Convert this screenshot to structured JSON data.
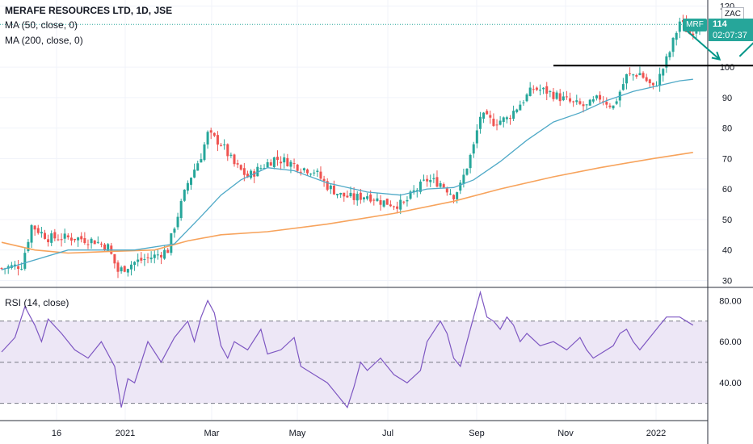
{
  "header": {
    "title": "MERAFE RESOURCES LTD, 1D, JSE",
    "ma50": "MA (50, close, 0)",
    "ma200": "MA (200, close, 0)"
  },
  "price_scale": {
    "currency": "ZAC",
    "symbol_tag": "MRF",
    "last_price": "114",
    "countdown": "02:07:37",
    "ticks": [
      "120",
      "100",
      "90",
      "80",
      "70",
      "60",
      "50",
      "40",
      "30"
    ]
  },
  "rsi_panel": {
    "label": "RSI (14, close)",
    "ticks": [
      "80.00",
      "60.00",
      "40.00"
    ]
  },
  "time_axis": {
    "labels": [
      "16",
      "2021",
      "Mar",
      "May",
      "Jul",
      "Sep",
      "Nov",
      "2022"
    ]
  },
  "colors": {
    "up": "#26a69a",
    "down": "#ef5350",
    "ma50": "#4fa9c7",
    "ma200": "#f7a35c",
    "rsi": "#7e57c2",
    "rsi_band": "#ede7f6",
    "accent": "#009688",
    "tag_bg": "#26a69a"
  },
  "chart_data": {
    "type": "candlestick",
    "price_ylim": [
      28,
      122
    ],
    "rsi_ylim": [
      22,
      86
    ],
    "rsi_band": [
      30,
      70
    ],
    "price_path": [
      [
        0,
        34
      ],
      [
        6,
        35
      ],
      [
        9,
        48
      ],
      [
        14,
        44
      ],
      [
        22,
        44
      ],
      [
        28,
        43
      ],
      [
        32,
        41
      ],
      [
        35,
        33
      ],
      [
        40,
        36
      ],
      [
        46,
        38
      ],
      [
        50,
        40
      ],
      [
        52,
        48
      ],
      [
        56,
        62
      ],
      [
        60,
        71
      ],
      [
        62,
        78
      ],
      [
        66,
        75
      ],
      [
        70,
        68
      ],
      [
        74,
        64
      ],
      [
        78,
        67
      ],
      [
        82,
        70
      ],
      [
        86,
        69
      ],
      [
        90,
        67
      ],
      [
        94,
        66
      ],
      [
        98,
        61
      ],
      [
        102,
        58
      ],
      [
        106,
        57
      ],
      [
        110,
        58
      ],
      [
        114,
        56
      ],
      [
        118,
        55
      ],
      [
        121,
        55
      ],
      [
        124,
        59
      ],
      [
        128,
        63
      ],
      [
        132,
        62
      ],
      [
        136,
        58
      ],
      [
        138,
        61
      ],
      [
        142,
        74
      ],
      [
        144,
        84
      ],
      [
        148,
        82
      ],
      [
        152,
        83
      ],
      [
        156,
        88
      ],
      [
        160,
        93
      ],
      [
        164,
        92
      ],
      [
        168,
        90
      ],
      [
        172,
        88
      ],
      [
        176,
        87
      ],
      [
        180,
        90
      ],
      [
        184,
        87
      ],
      [
        188,
        97
      ],
      [
        192,
        98
      ],
      [
        196,
        93
      ],
      [
        198,
        97
      ],
      [
        201,
        105
      ],
      [
        204,
        115
      ],
      [
        207,
        111
      ],
      [
        210,
        114
      ]
    ],
    "ma50_path": [
      [
        0,
        33.5
      ],
      [
        20,
        40
      ],
      [
        40,
        40
      ],
      [
        52,
        42
      ],
      [
        60,
        51
      ],
      [
        66,
        58
      ],
      [
        72,
        63
      ],
      [
        80,
        67
      ],
      [
        88,
        66
      ],
      [
        98,
        62
      ],
      [
        110,
        59
      ],
      [
        120,
        58
      ],
      [
        128,
        60
      ],
      [
        136,
        60.5
      ],
      [
        142,
        63
      ],
      [
        150,
        69
      ],
      [
        158,
        76
      ],
      [
        166,
        82
      ],
      [
        174,
        85
      ],
      [
        182,
        89
      ],
      [
        190,
        92
      ],
      [
        198,
        94
      ],
      [
        204,
        95.5
      ],
      [
        208,
        96
      ]
    ],
    "ma200_path": [
      [
        0,
        42.5
      ],
      [
        10,
        40
      ],
      [
        20,
        39
      ],
      [
        32,
        39.5
      ],
      [
        46,
        40
      ],
      [
        56,
        43
      ],
      [
        66,
        45
      ],
      [
        80,
        46
      ],
      [
        98,
        48.5
      ],
      [
        118,
        52
      ],
      [
        136,
        56
      ],
      [
        150,
        60
      ],
      [
        166,
        64
      ],
      [
        180,
        67
      ],
      [
        196,
        70
      ],
      [
        208,
        72
      ]
    ],
    "rsi_path": [
      [
        0,
        55
      ],
      [
        4,
        62
      ],
      [
        7,
        77
      ],
      [
        10,
        68
      ],
      [
        12,
        60
      ],
      [
        14,
        71
      ],
      [
        18,
        64
      ],
      [
        22,
        56
      ],
      [
        26,
        52
      ],
      [
        30,
        60
      ],
      [
        34,
        48
      ],
      [
        36,
        28
      ],
      [
        38,
        42
      ],
      [
        40,
        40
      ],
      [
        44,
        60
      ],
      [
        48,
        50
      ],
      [
        52,
        62
      ],
      [
        56,
        70
      ],
      [
        58,
        60
      ],
      [
        60,
        72
      ],
      [
        62,
        80
      ],
      [
        64,
        74
      ],
      [
        66,
        58
      ],
      [
        68,
        52
      ],
      [
        70,
        60
      ],
      [
        74,
        56
      ],
      [
        78,
        66
      ],
      [
        80,
        54
      ],
      [
        84,
        56
      ],
      [
        88,
        62
      ],
      [
        90,
        48
      ],
      [
        94,
        44
      ],
      [
        98,
        40
      ],
      [
        100,
        36
      ],
      [
        102,
        32
      ],
      [
        104,
        28
      ],
      [
        106,
        38
      ],
      [
        108,
        50
      ],
      [
        110,
        46
      ],
      [
        114,
        52
      ],
      [
        118,
        44
      ],
      [
        122,
        40
      ],
      [
        126,
        46
      ],
      [
        128,
        60
      ],
      [
        132,
        70
      ],
      [
        134,
        64
      ],
      [
        136,
        52
      ],
      [
        138,
        48
      ],
      [
        140,
        60
      ],
      [
        142,
        72
      ],
      [
        144,
        84
      ],
      [
        146,
        72
      ],
      [
        148,
        70
      ],
      [
        150,
        66
      ],
      [
        152,
        72
      ],
      [
        154,
        68
      ],
      [
        156,
        60
      ],
      [
        158,
        64
      ],
      [
        162,
        58
      ],
      [
        166,
        60
      ],
      [
        170,
        56
      ],
      [
        174,
        62
      ],
      [
        176,
        56
      ],
      [
        178,
        52
      ],
      [
        180,
        54
      ],
      [
        184,
        58
      ],
      [
        186,
        64
      ],
      [
        188,
        66
      ],
      [
        190,
        60
      ],
      [
        192,
        56
      ],
      [
        196,
        64
      ],
      [
        198,
        68
      ],
      [
        200,
        72
      ],
      [
        204,
        72
      ],
      [
        206,
        70
      ],
      [
        208,
        68
      ]
    ],
    "annotations": {
      "resistance_price": 100.5,
      "drawn_arrows": 2
    }
  }
}
